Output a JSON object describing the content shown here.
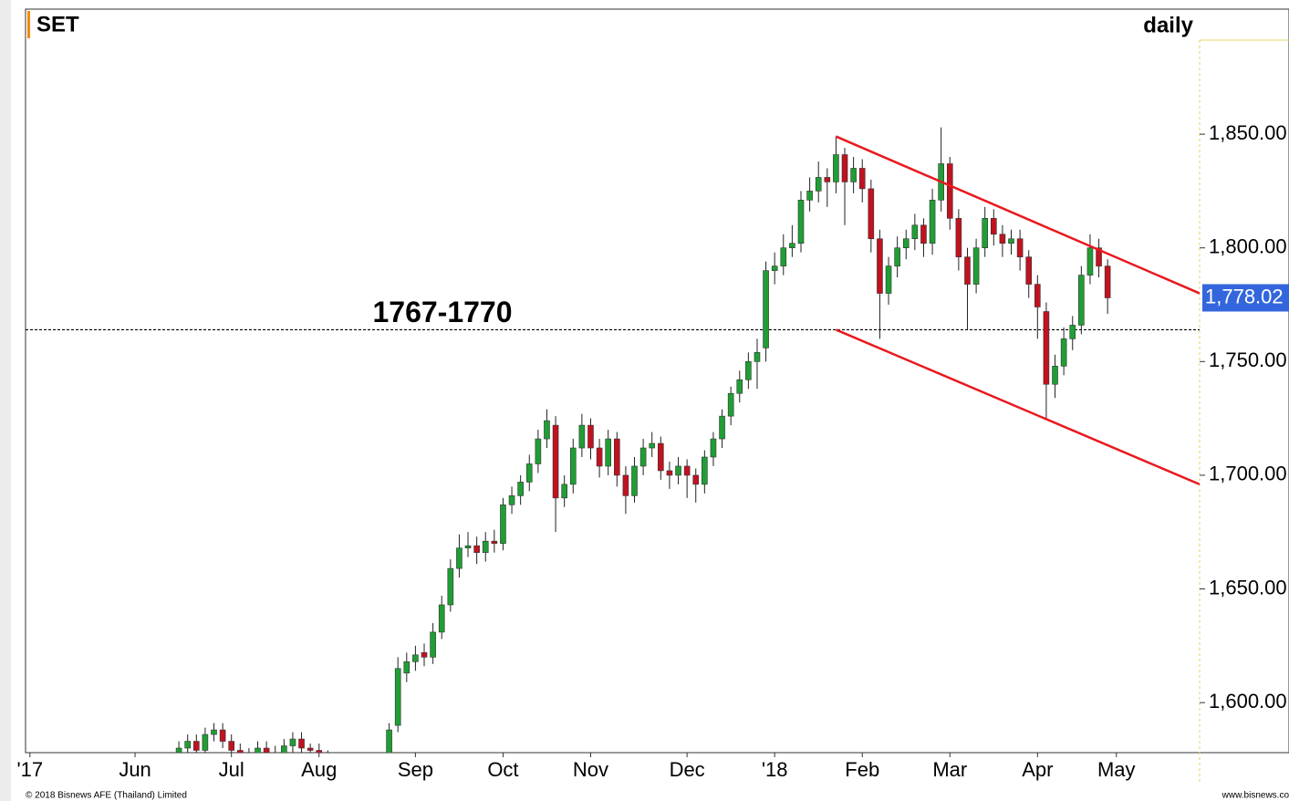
{
  "chart_data": {
    "type": "candlestick",
    "title": "SET",
    "subtitle": "daily",
    "footer_left": "© 2018 Bisnews AFE (Thailand) Limited",
    "footer_right": "www.bisnews.co",
    "annotation": "1767-1770",
    "hline": 1764,
    "last_label": "1,778.02",
    "up_color": "#1f9e35",
    "down_color": "#c1121f",
    "trend_color": "#e8191e",
    "ylim": [
      1578,
      1905
    ],
    "yticks": [
      {
        "value": 1600,
        "label": "1,600.00"
      },
      {
        "value": 1650,
        "label": "1,650.00"
      },
      {
        "value": 1700,
        "label": "1,700.00"
      },
      {
        "value": 1750,
        "label": "1,750.00"
      },
      {
        "value": 1800,
        "label": "1,800.00"
      },
      {
        "value": 1850,
        "label": "1,850.00"
      }
    ],
    "categories": [
      "'17",
      null,
      null,
      null,
      null,
      null,
      null,
      null,
      null,
      null,
      null,
      null,
      "Jun",
      null,
      null,
      null,
      null,
      null,
      null,
      null,
      null,
      null,
      null,
      "Jul",
      null,
      null,
      null,
      null,
      null,
      null,
      null,
      null,
      null,
      "Aug",
      null,
      null,
      null,
      null,
      null,
      null,
      null,
      null,
      null,
      null,
      "Sep",
      null,
      null,
      null,
      null,
      null,
      null,
      null,
      null,
      null,
      "Oct",
      null,
      null,
      null,
      null,
      null,
      null,
      null,
      null,
      null,
      "Nov",
      null,
      null,
      null,
      null,
      null,
      null,
      null,
      null,
      null,
      null,
      "Dec",
      null,
      null,
      null,
      null,
      null,
      null,
      null,
      null,
      null,
      "'18",
      null,
      null,
      null,
      null,
      null,
      null,
      null,
      null,
      null,
      "Feb",
      null,
      null,
      null,
      null,
      null,
      null,
      null,
      null,
      null,
      "Mar",
      null,
      null,
      null,
      null,
      null,
      null,
      null,
      null,
      null,
      "Apr",
      null,
      null,
      null,
      null,
      null,
      null,
      null,
      null,
      "May",
      null,
      null,
      null,
      null,
      null,
      null,
      null,
      null,
      null
    ],
    "open": [
      null,
      null,
      null,
      null,
      null,
      null,
      null,
      null,
      null,
      null,
      null,
      null,
      null,
      null,
      null,
      null,
      null,
      1578,
      1580,
      1583,
      1579,
      1586,
      1588,
      1583,
      1579,
      1577,
      1576,
      1580,
      1578,
      1575,
      1581,
      1584,
      1580,
      1579,
      1576,
      1574,
      1572,
      1571,
      1573,
      1570,
      1572,
      1574,
      1590,
      1613,
      1618,
      1622,
      1620,
      1631,
      1643,
      1659,
      1668,
      1669,
      1666,
      1671,
      1670,
      1687,
      1691,
      1697,
      1705,
      1716,
      1722,
      1690,
      1696,
      1712,
      1722,
      1712,
      1704,
      1716,
      1700,
      1691,
      1704,
      1712,
      1714,
      1702,
      1700,
      1704,
      1700,
      1696,
      1708,
      1716,
      1726,
      1736,
      1742,
      1750,
      1756,
      1790,
      1792,
      1800,
      1802,
      1821,
      1825,
      1831,
      1829,
      1841,
      1829,
      1835,
      1826,
      1804,
      1780,
      1792,
      1800,
      1804,
      1810,
      1802,
      1821,
      1837,
      1813,
      1796,
      1784,
      1800,
      1813,
      1806,
      1802,
      1804,
      1796,
      1784,
      1772,
      1740,
      1748,
      1760,
      1766,
      1788,
      1800,
      1792,
      null,
      null,
      null,
      null,
      null,
      null,
      null,
      null,
      null,
      null
    ],
    "high": [
      null,
      null,
      null,
      null,
      null,
      null,
      null,
      null,
      null,
      null,
      null,
      null,
      null,
      null,
      null,
      null,
      null,
      1583,
      1586,
      1586,
      1589,
      1591,
      1591,
      1586,
      1582,
      1580,
      1583,
      1583,
      1581,
      1584,
      1587,
      1587,
      1582,
      1582,
      1579,
      1577,
      1575,
      1576,
      1576,
      1575,
      1577,
      1591,
      1620,
      1622,
      1625,
      1626,
      1635,
      1647,
      1663,
      1674,
      1675,
      1673,
      1675,
      1676,
      1690,
      1695,
      1700,
      1709,
      1720,
      1729,
      1726,
      1700,
      1716,
      1727,
      1725,
      1716,
      1720,
      1719,
      1704,
      1708,
      1716,
      1719,
      1717,
      1706,
      1708,
      1707,
      1703,
      1711,
      1719,
      1729,
      1739,
      1746,
      1754,
      1760,
      1794,
      1798,
      1806,
      1810,
      1825,
      1831,
      1838,
      1835,
      1849,
      1844,
      1840,
      1839,
      1830,
      1808,
      1796,
      1805,
      1808,
      1815,
      1813,
      1826,
      1853,
      1840,
      1817,
      1800,
      1804,
      1818,
      1817,
      1810,
      1808,
      1808,
      1799,
      1788,
      1776,
      1753,
      1765,
      1770,
      1792,
      1806,
      1804,
      1795,
      null,
      null,
      null,
      null,
      null,
      null,
      null,
      null,
      null,
      null
    ],
    "low": [
      null,
      null,
      null,
      null,
      null,
      null,
      null,
      null,
      null,
      null,
      null,
      null,
      null,
      null,
      null,
      null,
      null,
      1575,
      1577,
      1576,
      1576,
      1583,
      1580,
      1576,
      1574,
      1573,
      1573,
      1575,
      1572,
      1572,
      1578,
      1577,
      1576,
      1573,
      1571,
      1569,
      1568,
      1568,
      1567,
      1567,
      1569,
      1571,
      1587,
      1609,
      1614,
      1616,
      1617,
      1628,
      1640,
      1655,
      1664,
      1661,
      1662,
      1666,
      1667,
      1683,
      1687,
      1693,
      1701,
      1712,
      1675,
      1686,
      1692,
      1708,
      1707,
      1699,
      1700,
      1695,
      1683,
      1688,
      1700,
      1708,
      1698,
      1694,
      1696,
      1690,
      1688,
      1692,
      1704,
      1712,
      1722,
      1732,
      1738,
      1738,
      1750,
      1784,
      1788,
      1796,
      1798,
      1816,
      1820,
      1818,
      1824,
      1810,
      1824,
      1820,
      1798,
      1760,
      1775,
      1787,
      1795,
      1799,
      1796,
      1797,
      1816,
      1808,
      1790,
      1764,
      1780,
      1796,
      1801,
      1796,
      1797,
      1790,
      1778,
      1760,
      1725,
      1734,
      1744,
      1755,
      1762,
      1784,
      1787,
      1771,
      null,
      null,
      null,
      null,
      null,
      null,
      null,
      null,
      null,
      null
    ],
    "close": [
      null,
      null,
      null,
      null,
      null,
      null,
      null,
      null,
      null,
      null,
      null,
      null,
      null,
      null,
      null,
      null,
      null,
      1580,
      1583,
      1579,
      1586,
      1588,
      1583,
      1579,
      1577,
      1576,
      1580,
      1578,
      1575,
      1581,
      1584,
      1580,
      1579,
      1576,
      1574,
      1572,
      1571,
      1573,
      1570,
      1572,
      1574,
      1588,
      1615,
      1618,
      1621,
      1620,
      1631,
      1643,
      1659,
      1668,
      1669,
      1666,
      1671,
      1670,
      1687,
      1691,
      1697,
      1705,
      1716,
      1724,
      1690,
      1696,
      1712,
      1722,
      1712,
      1704,
      1716,
      1700,
      1691,
      1704,
      1712,
      1714,
      1702,
      1700,
      1704,
      1700,
      1696,
      1708,
      1716,
      1726,
      1736,
      1742,
      1750,
      1754,
      1790,
      1792,
      1800,
      1802,
      1821,
      1825,
      1831,
      1829,
      1841,
      1829,
      1835,
      1826,
      1804,
      1780,
      1792,
      1800,
      1804,
      1810,
      1802,
      1821,
      1837,
      1813,
      1796,
      1784,
      1800,
      1813,
      1806,
      1802,
      1804,
      1796,
      1784,
      1774,
      1740,
      1748,
      1760,
      1766,
      1788,
      1800,
      1792,
      1778.02,
      null,
      null,
      null,
      null,
      null,
      null,
      null,
      null,
      null,
      null
    ],
    "trendlines": [
      {
        "x": [
          92,
          133.5
        ],
        "y": [
          1849,
          1780
        ]
      },
      {
        "x": [
          92,
          133.5
        ],
        "y": [
          1764,
          1696
        ]
      }
    ]
  }
}
